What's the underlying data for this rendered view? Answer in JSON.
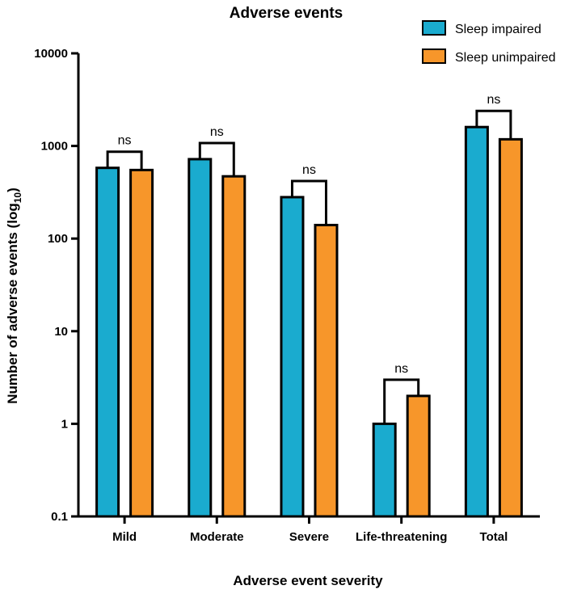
{
  "chart_data": {
    "type": "bar",
    "title": "Adverse events",
    "xlabel": "Adverse event severity",
    "ylabel_main": "Number of adverse events (log",
    "ylabel_sub": "10",
    "ylabel_close": ")",
    "yscale": "log",
    "ylim": [
      0.1,
      10000
    ],
    "yticks": [
      0.1,
      1,
      10,
      100,
      1000,
      10000
    ],
    "ytick_labels": [
      "0.1",
      "1",
      "10",
      "100",
      "1000",
      "10000"
    ],
    "categories": [
      "Mild",
      "Moderate",
      "Severe",
      "Life-threatening",
      "Total"
    ],
    "series": [
      {
        "name": "Sleep impaired",
        "color": "#1aabcf",
        "values": [
          580,
          720,
          280,
          1,
          1600
        ]
      },
      {
        "name": "Sleep unimpaired",
        "color": "#f7962a",
        "values": [
          550,
          470,
          140,
          2,
          1180
        ]
      }
    ],
    "significance": [
      "ns",
      "ns",
      "ns",
      "ns",
      "ns"
    ],
    "legend_position": "top-right",
    "grid": false
  }
}
